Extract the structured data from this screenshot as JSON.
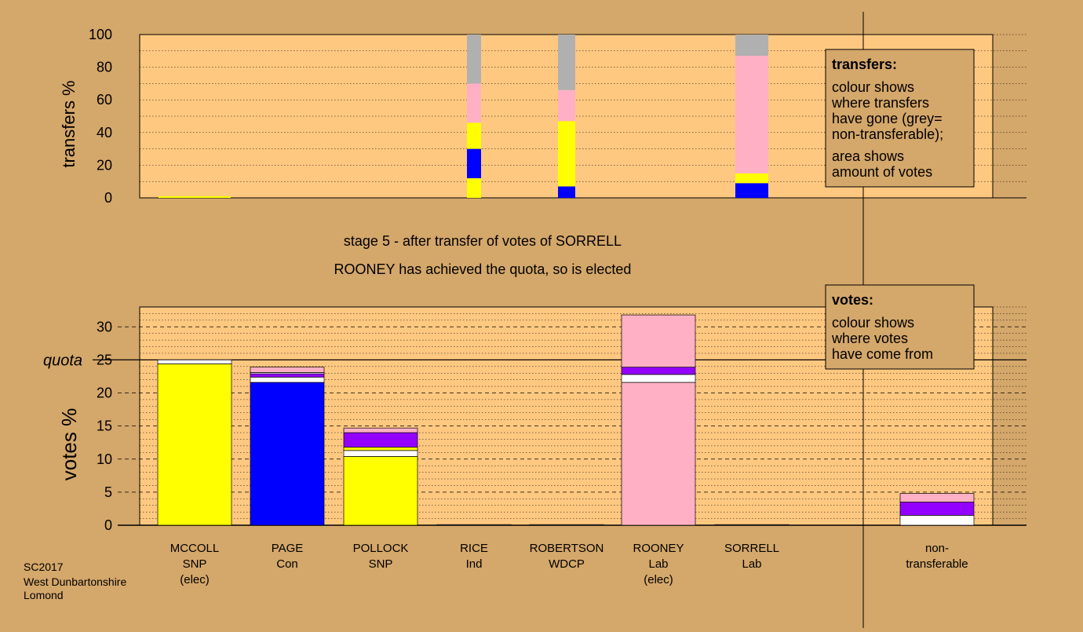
{
  "chart_data": [
    {
      "type": "bar",
      "stacked": true,
      "ylabel": "transfers %",
      "ylim": [
        0,
        100
      ],
      "yticks": [
        0,
        20,
        40,
        60,
        80,
        100
      ],
      "grid": true,
      "categories": [
        "MCCOLL",
        "PAGE",
        "POLLOCK",
        "RICE",
        "ROBERTSON",
        "ROONEY",
        "SORRELL"
      ],
      "stacks": [
        [
          {
            "color": "#ffff00",
            "value": 1
          }
        ],
        [],
        [],
        [
          {
            "color": "#ffff00",
            "value": 12
          },
          {
            "color": "#0000ff",
            "value": 18
          },
          {
            "color": "#ffff00",
            "value": 16
          },
          {
            "color": "#ffb0c4",
            "value": 24
          },
          {
            "color": "#b0b0b0",
            "value": 30
          }
        ],
        [
          {
            "color": "#0000ff",
            "value": 7
          },
          {
            "color": "#ffff00",
            "value": 40
          },
          {
            "color": "#ffb0c4",
            "value": 19
          },
          {
            "color": "#b0b0b0",
            "value": 34
          }
        ],
        [],
        [
          {
            "color": "#0000ff",
            "value": 9
          },
          {
            "color": "#ffff00",
            "value": 6
          },
          {
            "color": "#ffb0c4",
            "value": 72
          },
          {
            "color": "#b0b0b0",
            "value": 13
          }
        ]
      ],
      "legend": {
        "title": "transfers:",
        "lines": [
          "colour shows",
          "where transfers",
          "have gone (grey=",
          "non-transferable);",
          "area shows",
          "amount of votes"
        ]
      }
    },
    {
      "type": "bar",
      "stacked": true,
      "ylabel": "votes %",
      "ylim": [
        0,
        33
      ],
      "yticks": [
        0,
        5,
        10,
        15,
        20,
        25,
        30
      ],
      "quota": 25,
      "quota_label": "quota",
      "grid": true,
      "categories": [
        {
          "name": "MCCOLL",
          "party": "SNP",
          "note": "(elec)"
        },
        {
          "name": "PAGE",
          "party": "Con",
          "note": ""
        },
        {
          "name": "POLLOCK",
          "party": "SNP",
          "note": ""
        },
        {
          "name": "RICE",
          "party": "Ind",
          "note": ""
        },
        {
          "name": "ROBERTSON",
          "party": "WDCP",
          "note": ""
        },
        {
          "name": "ROONEY",
          "party": "Lab",
          "note": "(elec)"
        },
        {
          "name": "SORRELL",
          "party": "Lab",
          "note": ""
        },
        {
          "name": "non-",
          "party": "transferable",
          "note": ""
        }
      ],
      "stacks": [
        [
          {
            "color": "#ffff00",
            "value": 24.4
          },
          {
            "color": "#ffffff",
            "value": 0.6
          }
        ],
        [
          {
            "color": "#0000ff",
            "value": 21.6
          },
          {
            "color": "#ffffff",
            "value": 0.8
          },
          {
            "color": "#9400ff",
            "value": 0.5
          },
          {
            "color": "#ffffff",
            "value": 0.2
          },
          {
            "color": "#ffb0c4",
            "value": 0.8
          }
        ],
        [
          {
            "color": "#ffff00",
            "value": 10.4
          },
          {
            "color": "#ffffff",
            "value": 0.9
          },
          {
            "color": "#ffff00",
            "value": 0.5
          },
          {
            "color": "#9400ff",
            "value": 2.2
          },
          {
            "color": "#ffb0c4",
            "value": 0.7
          }
        ],
        [
          {
            "color": "#ffb0c4",
            "value": 0.1
          }
        ],
        [
          {
            "color": "#ffb0c4",
            "value": 0.1
          }
        ],
        [
          {
            "color": "#ffb0c4",
            "value": 21.6
          },
          {
            "color": "#ffffff",
            "value": 1.2
          },
          {
            "color": "#9400ff",
            "value": 1.1
          },
          {
            "color": "#ffb0c4",
            "value": 7.9
          }
        ],
        [
          {
            "color": "#ffb0c4",
            "value": 0.1
          }
        ],
        [
          {
            "color": "#ffffff",
            "value": 1.5
          },
          {
            "color": "#9400ff",
            "value": 2.0
          },
          {
            "color": "#ffb0c4",
            "value": 1.3
          }
        ]
      ],
      "legend": {
        "title": "votes:",
        "lines": [
          "colour shows",
          "where votes",
          "have come from"
        ]
      }
    }
  ],
  "stage_title": "stage 5 - after transfer of votes of SORRELL",
  "stage_subtitle": "ROONEY has achieved the quota, so is elected",
  "footer": [
    "SC2017",
    "West Dunbartonshire",
    "Lomond"
  ]
}
